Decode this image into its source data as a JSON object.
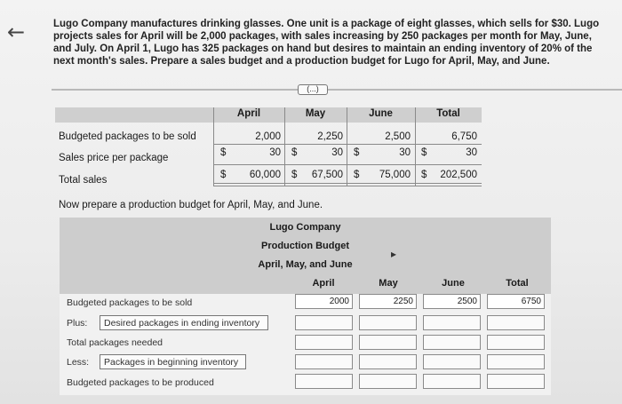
{
  "nav": {
    "back_icon": "←"
  },
  "problem_text": "Lugo Company manufactures drinking glasses. One unit is a package of eight glasses, which sells for $30. Lugo projects sales for April will be 2,000 packages, with sales increasing by 250 packages per month for May, June, and July. On April 1, Lugo has 325 packages on hand but desires to maintain an ending inventory of 20% of the next month's sales. Prepare a sales budget and a production budget for Lugo for April, May, and June.",
  "more_button": "(...)",
  "sales_budget": {
    "columns": [
      "April",
      "May",
      "June",
      "Total"
    ],
    "rows": [
      {
        "label": "Budgeted packages to be sold",
        "values": [
          "2,000",
          "2,250",
          "2,500",
          "6,750"
        ]
      },
      {
        "label": "Sales price per package",
        "dollar": "$",
        "values": [
          "30",
          "30",
          "30",
          "30"
        ]
      },
      {
        "label": "Total sales",
        "dollar": "$",
        "values": [
          "60,000",
          "67,500",
          "75,000",
          "202,500"
        ]
      }
    ]
  },
  "prompt2": "Now prepare a production budget for April, May, and June.",
  "production_budget": {
    "title1": "Lugo Company",
    "title2": "Production Budget",
    "title3": "April, May, and June",
    "columns": [
      "April",
      "May",
      "June",
      "Total"
    ],
    "rows": [
      {
        "label": "Budgeted packages to be sold",
        "values": [
          "2000",
          "2250",
          "2500",
          "6750"
        ]
      },
      {
        "prefix": "Plus:",
        "input": "Desired packages in ending inventory",
        "values": [
          "",
          "",
          "",
          ""
        ]
      },
      {
        "label": "Total packages needed",
        "values": [
          "",
          "",
          "",
          ""
        ]
      },
      {
        "prefix": "Less:",
        "input": "Packages in beginning inventory",
        "values": [
          "",
          "",
          "",
          ""
        ]
      },
      {
        "label": "Budgeted packages to be produced",
        "values": [
          "",
          "",
          "",
          ""
        ]
      }
    ]
  }
}
